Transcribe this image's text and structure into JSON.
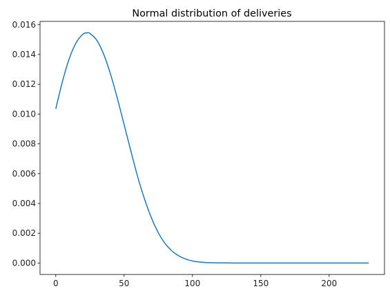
{
  "chart_data": {
    "type": "line",
    "title": "Normal distribution of deliveries",
    "xlabel": "",
    "ylabel": "",
    "xlim": [
      -11.5,
      240.5
    ],
    "ylim": [
      -0.00077,
      0.01622
    ],
    "x_ticks": [
      0,
      50,
      100,
      150,
      200
    ],
    "x_tick_labels": [
      "0",
      "50",
      "100",
      "150",
      "200"
    ],
    "y_ticks": [
      0.0,
      0.002,
      0.004,
      0.006,
      0.008,
      0.01,
      0.012,
      0.014,
      0.016
    ],
    "y_tick_labels": [
      "0.000",
      "0.002",
      "0.004",
      "0.006",
      "0.008",
      "0.010",
      "0.012",
      "0.014",
      "0.016"
    ],
    "grid": false,
    "series": [
      {
        "color": "#1f77b4",
        "x": [
          0,
          5,
          10,
          15,
          20,
          23,
          25,
          30,
          35,
          40,
          45,
          50,
          55,
          60,
          65,
          70,
          75,
          80,
          85,
          90,
          95,
          100,
          105,
          110,
          115,
          120,
          130,
          140,
          150,
          175,
          200,
          229
        ],
        "y": [
          0.01035,
          0.01222,
          0.01375,
          0.0148,
          0.01537,
          0.01545,
          0.01541,
          0.01496,
          0.01403,
          0.0127,
          0.01107,
          0.0093,
          0.0075,
          0.00577,
          0.00428,
          0.00303,
          0.00204,
          0.00131,
          0.00081,
          0.00048,
          0.00027,
          0.00014,
          7e-05,
          3e-05,
          2e-05,
          1e-05,
          0.0,
          0.0,
          0.0,
          0.0,
          0.0,
          0.0
        ]
      }
    ]
  }
}
